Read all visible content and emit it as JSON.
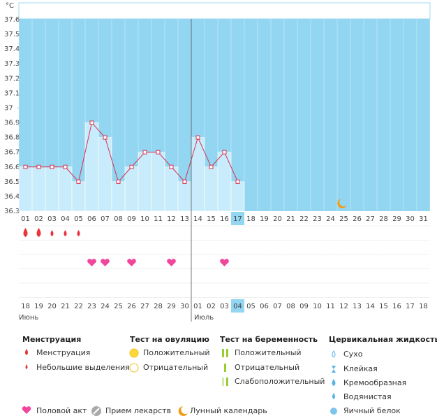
{
  "chart_data": {
    "type": "line",
    "unit": "°C",
    "categories": [
      "01",
      "02",
      "03",
      "04",
      "05",
      "06",
      "07",
      "08",
      "09",
      "10",
      "11",
      "12",
      "13",
      "14",
      "15",
      "16",
      "17",
      "18",
      "19",
      "20",
      "21",
      "22",
      "23",
      "24",
      "25",
      "26",
      "27",
      "28",
      "29",
      "30",
      "31"
    ],
    "values": [
      36.6,
      36.6,
      36.6,
      36.6,
      36.5,
      36.9,
      36.8,
      36.5,
      36.6,
      36.7,
      36.7,
      36.6,
      36.5,
      36.8,
      36.6,
      36.7,
      36.5,
      null,
      null,
      null,
      null,
      null,
      null,
      null,
      null,
      null,
      null,
      null,
      null,
      null,
      null
    ],
    "ylim": [
      36.3,
      37.6
    ],
    "yticks": [
      36.3,
      36.4,
      36.5,
      36.6,
      36.7,
      36.8,
      36.9,
      37,
      37.1,
      37.2,
      37.3,
      37.4,
      37.5,
      37.6
    ],
    "color": "#d9304f",
    "bar_color": "#c8ecfb",
    "background": "#92d6f2",
    "today": 16,
    "dates": [
      "18",
      "19",
      "20",
      "21",
      "22",
      "23",
      "24",
      "25",
      "26",
      "27",
      "28",
      "29",
      "30",
      "01",
      "02",
      "03",
      "04",
      "05",
      "06",
      "07",
      "08",
      "09",
      "10",
      "11",
      "12",
      "13",
      "14",
      "15",
      "16",
      "17",
      "18"
    ],
    "weekend": [
      5,
      6,
      12,
      13,
      14,
      19,
      20,
      26,
      27
    ],
    "weekend_color": "#e0245e",
    "months": [
      {
        "label": "Июнь",
        "index": 0
      },
      {
        "label": "Июль",
        "index": 13
      }
    ],
    "events": {
      "menstruation_heavy": [
        0,
        1
      ],
      "menstruation_light": [
        2,
        3,
        4
      ],
      "intercourse": [
        5,
        6,
        8,
        11,
        15
      ],
      "moon": [
        24
      ]
    }
  },
  "legend": {
    "groups": [
      {
        "title": "Менструация",
        "items": [
          "Менструация",
          "Небольшие выделения"
        ]
      },
      {
        "title": "Тест на овуляцию",
        "items": [
          "Положительный",
          "Отрицательный"
        ]
      },
      {
        "title": "Тест на беременность",
        "items": [
          "Положительный",
          "Отрицательный",
          "Слабоположительный"
        ]
      },
      {
        "title": "Цервикальная жидкость",
        "items": [
          "Сухо",
          "Клейкая",
          "Кремообразная",
          "Водянистая",
          "Яичный белок"
        ]
      }
    ],
    "other": [
      "Половой акт",
      "Прием лекарств",
      "Лунный календарь"
    ]
  }
}
